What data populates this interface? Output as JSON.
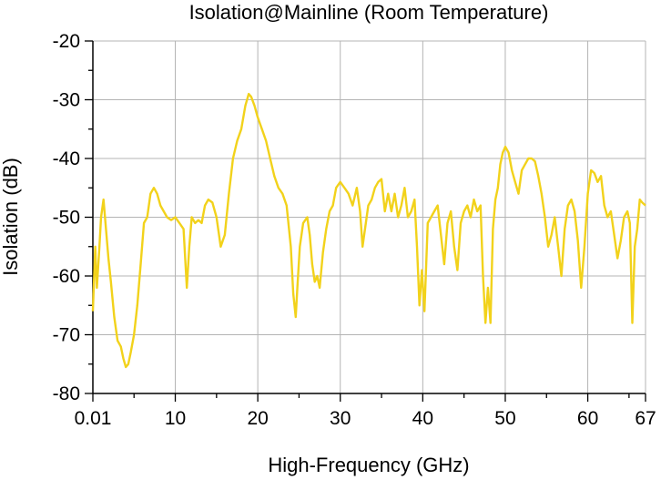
{
  "chart_data": {
    "type": "line",
    "title": "Isolation@Mainline (Room Temperature)",
    "xlabel": "High-Frequency (GHz)",
    "ylabel": "Isolation (dB)",
    "xlim": [
      0.01,
      67
    ],
    "ylim": [
      -80,
      -20
    ],
    "x_ticks": [
      0.01,
      10,
      20,
      30,
      40,
      50,
      60,
      67
    ],
    "x_tick_labels": [
      "0.01",
      "10",
      "20",
      "30",
      "40",
      "50",
      "60",
      "67"
    ],
    "y_ticks": [
      -80,
      -70,
      -60,
      -50,
      -40,
      -30,
      -20
    ],
    "y_tick_labels": [
      "-80",
      "-70",
      "-60",
      "-50",
      "-40",
      "-30",
      "-20"
    ],
    "grid": true,
    "line_color": "#f2d21b",
    "series": [
      {
        "x": [
          0.01,
          0.3,
          0.5,
          0.8,
          1.0,
          1.3,
          1.6,
          1.9,
          2.2,
          2.6,
          3.0,
          3.4,
          3.7,
          4.0,
          4.3,
          4.6,
          5.0,
          5.4,
          5.8,
          6.2,
          6.6,
          7.0,
          7.4,
          7.8,
          8.2,
          8.6,
          9.0,
          9.5,
          10.0,
          10.5,
          11.0,
          11.4,
          11.7,
          12.0,
          12.4,
          12.8,
          13.2,
          13.6,
          14.0,
          14.5,
          15.0,
          15.5,
          16.0,
          16.5,
          17.0,
          17.5,
          18.0,
          18.5,
          18.9,
          19.2,
          19.6,
          20.0,
          20.5,
          21.0,
          21.5,
          22.0,
          22.5,
          23.0,
          23.5,
          24.0,
          24.3,
          24.6,
          24.8,
          25.1,
          25.5,
          26.0,
          26.3,
          26.6,
          26.9,
          27.2,
          27.5,
          27.9,
          28.3,
          28.7,
          29.1,
          29.5,
          30.0,
          30.5,
          31.0,
          31.5,
          32.0,
          32.4,
          32.7,
          33.0,
          33.4,
          33.8,
          34.2,
          34.6,
          35.0,
          35.4,
          35.8,
          36.2,
          36.6,
          37.0,
          37.4,
          37.8,
          38.2,
          38.6,
          39.0,
          39.3,
          39.6,
          39.9,
          40.2,
          40.6,
          41.0,
          41.4,
          41.8,
          42.2,
          42.6,
          43.0,
          43.4,
          43.8,
          44.2,
          44.6,
          45.0,
          45.4,
          45.8,
          46.2,
          46.6,
          47.0,
          47.3,
          47.6,
          47.9,
          48.2,
          48.5,
          48.8,
          49.1,
          49.4,
          49.7,
          50.0,
          50.4,
          50.8,
          51.2,
          51.6,
          52.0,
          52.4,
          52.8,
          53.2,
          53.6,
          54.0,
          54.4,
          54.8,
          55.2,
          55.6,
          56.0,
          56.4,
          56.8,
          57.2,
          57.6,
          58.0,
          58.4,
          58.8,
          59.2,
          59.6,
          60.0,
          60.4,
          60.8,
          61.2,
          61.6,
          62.0,
          62.4,
          62.8,
          63.2,
          63.6,
          64.0,
          64.4,
          64.8,
          65.1,
          65.4,
          65.7,
          66.0,
          66.3,
          66.6,
          67.0
        ],
        "y": [
          -66,
          -55,
          -62,
          -55,
          -50,
          -47,
          -52,
          -57,
          -61,
          -67,
          -71,
          -72,
          -74,
          -75.5,
          -75,
          -73,
          -70,
          -65,
          -58,
          -51,
          -50,
          -46,
          -45,
          -46,
          -48,
          -49,
          -50,
          -50.5,
          -50,
          -51,
          -52,
          -62,
          -55,
          -50,
          -51,
          -50.5,
          -51,
          -48,
          -47,
          -47.5,
          -50,
          -55,
          -53,
          -46,
          -40,
          -37,
          -35,
          -31,
          -29,
          -29.5,
          -31,
          -33,
          -35,
          -37,
          -40,
          -43,
          -45,
          -46,
          -48,
          -55,
          -63,
          -67,
          -62,
          -55,
          -51,
          -50,
          -53,
          -58,
          -61,
          -60,
          -62,
          -56,
          -52,
          -49,
          -48,
          -45,
          -44,
          -45,
          -46,
          -48,
          -45,
          -49,
          -55,
          -52,
          -48,
          -47,
          -45,
          -44,
          -43.5,
          -49,
          -46,
          -49,
          -46,
          -50,
          -48,
          -45,
          -50,
          -49,
          -47,
          -55,
          -65,
          -59,
          -66,
          -51,
          -50,
          -49,
          -48,
          -53,
          -58,
          -51,
          -49,
          -55,
          -59,
          -51,
          -49,
          -48,
          -50,
          -47,
          -49,
          -48,
          -60,
          -68,
          -62,
          -68,
          -52,
          -47,
          -45,
          -41,
          -39,
          -38,
          -39,
          -42,
          -44,
          -46,
          -42,
          -41,
          -40,
          -40,
          -40.5,
          -43,
          -46,
          -50,
          -55,
          -53,
          -50,
          -55,
          -60,
          -52,
          -48,
          -47,
          -49,
          -54,
          -62,
          -55,
          -46,
          -42,
          -42.5,
          -44,
          -43,
          -48,
          -50,
          -49,
          -53,
          -57,
          -54,
          -50,
          -49,
          -51,
          -68,
          -55,
          -52,
          -47,
          -47.5,
          -48
        ]
      }
    ]
  }
}
